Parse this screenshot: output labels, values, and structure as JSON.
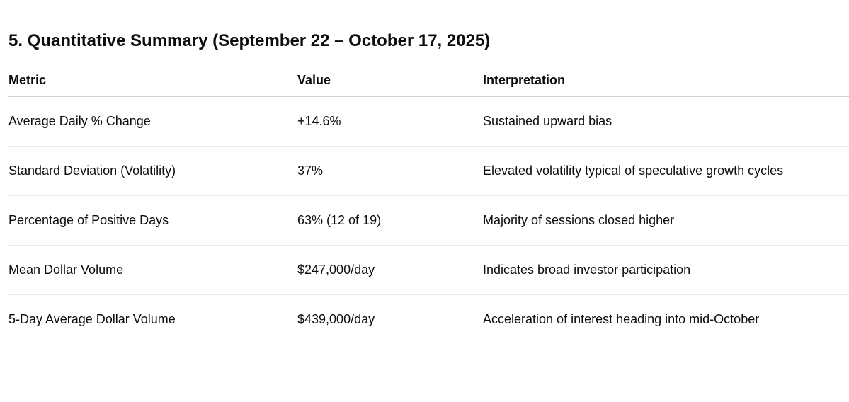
{
  "page": {
    "title": "5. Quantitative Summary (September 22 – October 17, 2025)"
  },
  "table": {
    "headers": [
      "Metric",
      "Value",
      "Interpretation"
    ],
    "rows": [
      {
        "metric": "Average Daily % Change",
        "value": "+14.6%",
        "interpretation": "Sustained upward bias"
      },
      {
        "metric": "Standard Deviation (Volatility)",
        "value": "37%",
        "interpretation": "Elevated volatility typical of speculative growth cycles"
      },
      {
        "metric": "Percentage of Positive Days",
        "value": "63% (12 of 19)",
        "interpretation": "Majority of sessions closed higher"
      },
      {
        "metric": "Mean Dollar Volume",
        "value": "$247,000/day",
        "interpretation": "Indicates broad investor participation"
      },
      {
        "metric": "5-Day Average Dollar Volume",
        "value": "$439,000/day",
        "interpretation": "Acceleration of interest heading into mid-October"
      }
    ]
  },
  "colors": {
    "text": "#0d0d0d",
    "background": "#ffffff",
    "header_border": "#d3d3d3",
    "row_border": "#ececec"
  }
}
